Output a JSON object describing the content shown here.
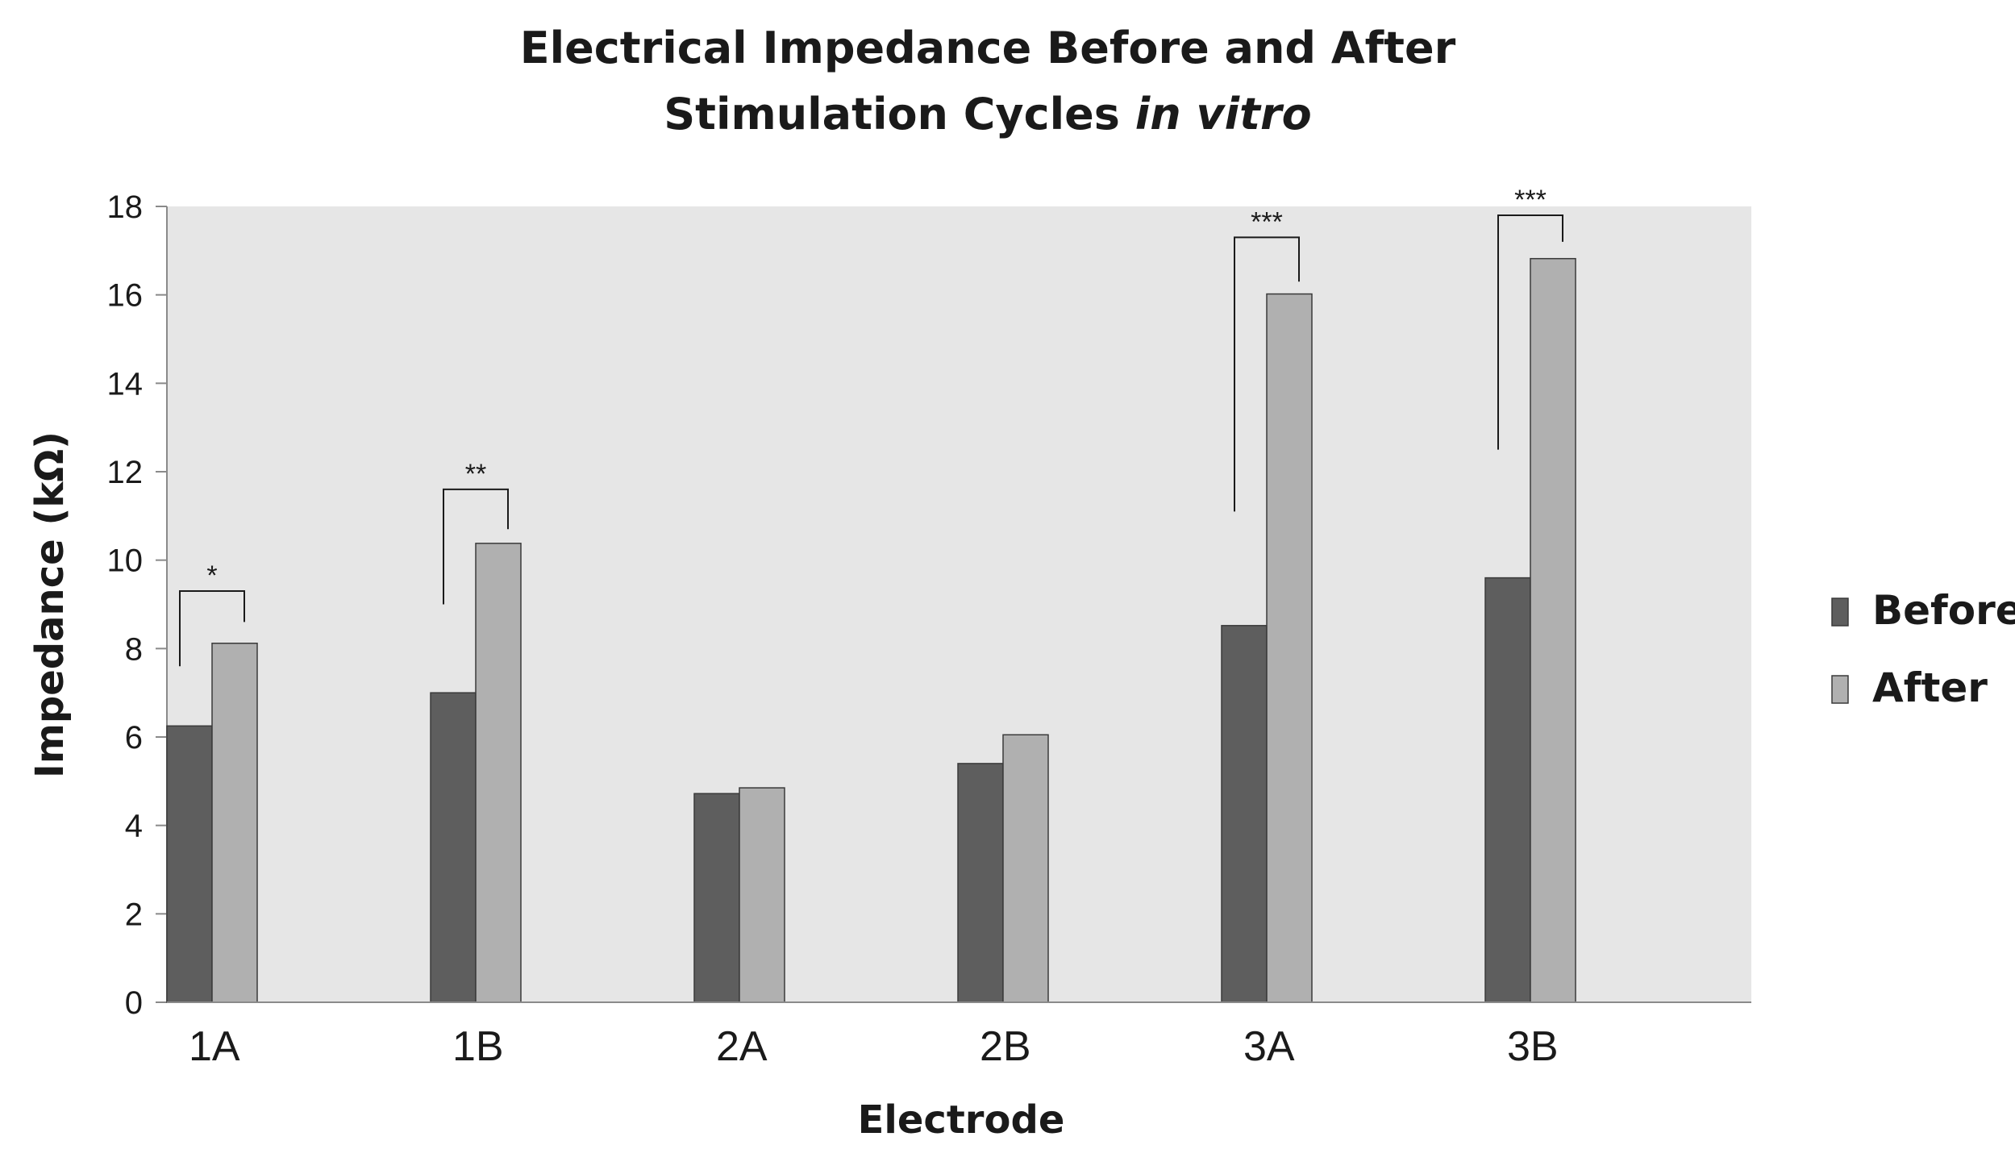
{
  "chart_data": {
    "type": "bar",
    "title_line1": "Electrical Impedance  Before and After",
    "title_line2_prefix": "Stimulation Cycles ",
    "title_line2_italic": "in vitro",
    "xlabel": "Electrode",
    "ylabel": "Impedance (kΩ)",
    "ylim": [
      0,
      18
    ],
    "yticks": [
      0,
      2,
      4,
      6,
      8,
      10,
      12,
      14,
      16,
      18
    ],
    "categories": [
      "1A",
      "1B",
      "2A",
      "2B",
      "3A",
      "3B"
    ],
    "series": [
      {
        "name": "Before",
        "color": "#5e5e5e",
        "values": [
          6.25,
          7.0,
          4.72,
          5.4,
          8.52,
          9.6
        ]
      },
      {
        "name": "After",
        "color": "#b0b0b0",
        "values": [
          8.12,
          10.38,
          4.85,
          6.05,
          16.02,
          16.82
        ]
      }
    ],
    "plot_background": "#e6e6e6",
    "legend_position": "right",
    "significance": [
      {
        "category": "1A",
        "label": "*",
        "bracket_top": 9.3,
        "left_arm_bottom": 7.6,
        "right_arm_bottom": 8.6
      },
      {
        "category": "1B",
        "label": "**",
        "bracket_top": 11.6,
        "left_arm_bottom": 9.0,
        "right_arm_bottom": 10.7
      },
      {
        "category": "3A",
        "label": "***",
        "bracket_top": 17.3,
        "left_arm_bottom": 11.1,
        "right_arm_bottom": 16.3
      },
      {
        "category": "3B",
        "label": "***",
        "bracket_top": 17.8,
        "left_arm_bottom": 12.5,
        "right_arm_bottom": 17.2
      }
    ]
  }
}
